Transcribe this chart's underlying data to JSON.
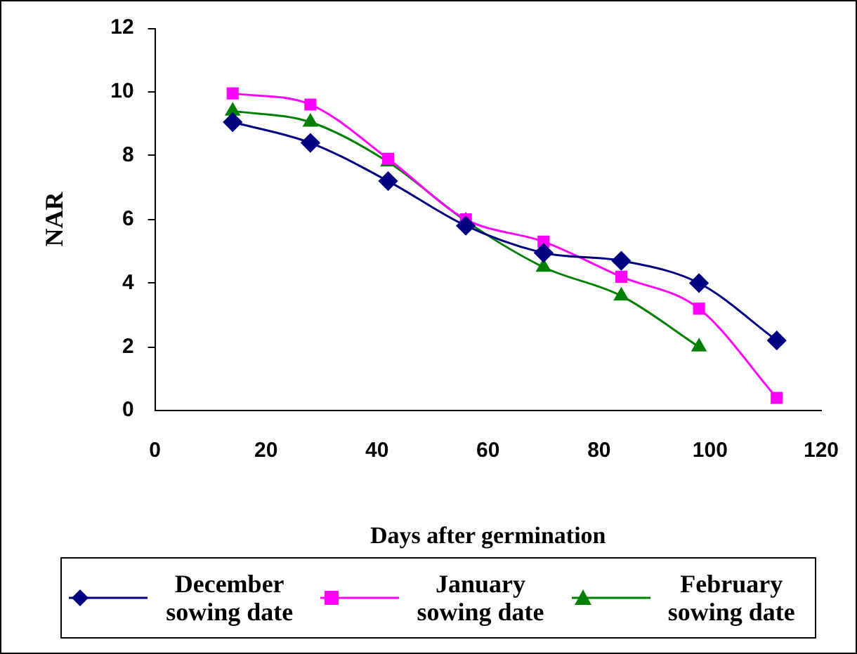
{
  "chart_data": {
    "type": "line",
    "xlabel": "Days after germination",
    "ylabel": "NAR",
    "xlim": [
      0,
      120
    ],
    "xticks": [
      0,
      20,
      40,
      60,
      80,
      100,
      120
    ],
    "ylim": [
      0,
      12
    ],
    "yticks": [
      0,
      2,
      4,
      6,
      8,
      10,
      12
    ],
    "grid": false,
    "legend": "bottom",
    "line_style": "solid",
    "series": [
      {
        "name": "December sowing date",
        "color": "#000080",
        "marker": "diamond",
        "x": [
          14,
          28,
          42,
          56,
          70,
          84,
          98,
          112
        ],
        "values": [
          9.05,
          8.4,
          7.2,
          5.8,
          4.95,
          4.7,
          4.0,
          2.2
        ]
      },
      {
        "name": "January sowing date",
        "color": "#ff00ff",
        "marker": "square",
        "x": [
          14,
          28,
          42,
          56,
          70,
          84,
          98,
          112
        ],
        "values": [
          9.95,
          9.6,
          7.9,
          6.0,
          5.3,
          4.2,
          3.2,
          0.4
        ]
      },
      {
        "name": "February sowing date",
        "color": "#008000",
        "marker": "triangle",
        "x": [
          14,
          28,
          42,
          56,
          70,
          84,
          98
        ],
        "values": [
          9.4,
          9.05,
          7.8,
          5.95,
          4.5,
          3.6,
          2.0
        ]
      }
    ]
  }
}
